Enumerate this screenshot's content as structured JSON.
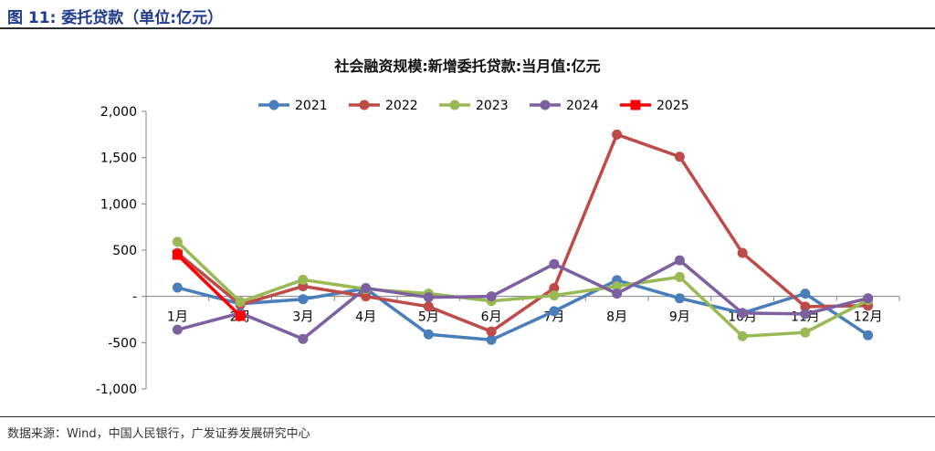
{
  "figure": {
    "title": "图  11:  委托贷款（单位:亿元）",
    "source": "数据来源：Wind，中国人民银行，广发证券发展研究中心"
  },
  "chart_data": {
    "type": "line",
    "title": "社会融资规模:新增委托贷款:当月值:亿元",
    "categories": [
      "1月",
      "2月",
      "3月",
      "4月",
      "5月",
      "6月",
      "7月",
      "8月",
      "9月",
      "10月",
      "11月",
      "12月"
    ],
    "ylim": [
      -1000,
      2000
    ],
    "yticks": [
      2000,
      1500,
      1000,
      500,
      0,
      -500,
      -1000
    ],
    "ytick_labels": [
      "2,000",
      "1,500",
      "1,000",
      "500",
      "-",
      "-500",
      "-1,000"
    ],
    "grid": false,
    "legend_position": "top",
    "series": [
      {
        "name": "2021",
        "color": "#4a7ebb",
        "marker": "circle",
        "values": [
          95,
          -80,
          -30,
          85,
          -410,
          -470,
          -160,
          175,
          -20,
          -180,
          30,
          -420
        ]
      },
      {
        "name": "2022",
        "color": "#be4b48",
        "marker": "circle",
        "values": [
          470,
          -90,
          110,
          0,
          -110,
          -380,
          90,
          1750,
          1510,
          470,
          -110,
          -100
        ]
      },
      {
        "name": "2023",
        "color": "#98b954",
        "marker": "circle",
        "values": [
          590,
          -60,
          180,
          80,
          30,
          -50,
          10,
          110,
          210,
          -430,
          -390,
          -40
        ]
      },
      {
        "name": "2024",
        "color": "#7d60a0",
        "marker": "circle",
        "values": [
          -360,
          -180,
          -460,
          90,
          -10,
          0,
          350,
          30,
          390,
          -180,
          -190,
          -20
        ]
      },
      {
        "name": "2025",
        "color": "#ff0000",
        "marker": "square",
        "values": [
          450,
          -210,
          null,
          null,
          null,
          null,
          null,
          null,
          null,
          null,
          null,
          null
        ]
      }
    ]
  }
}
